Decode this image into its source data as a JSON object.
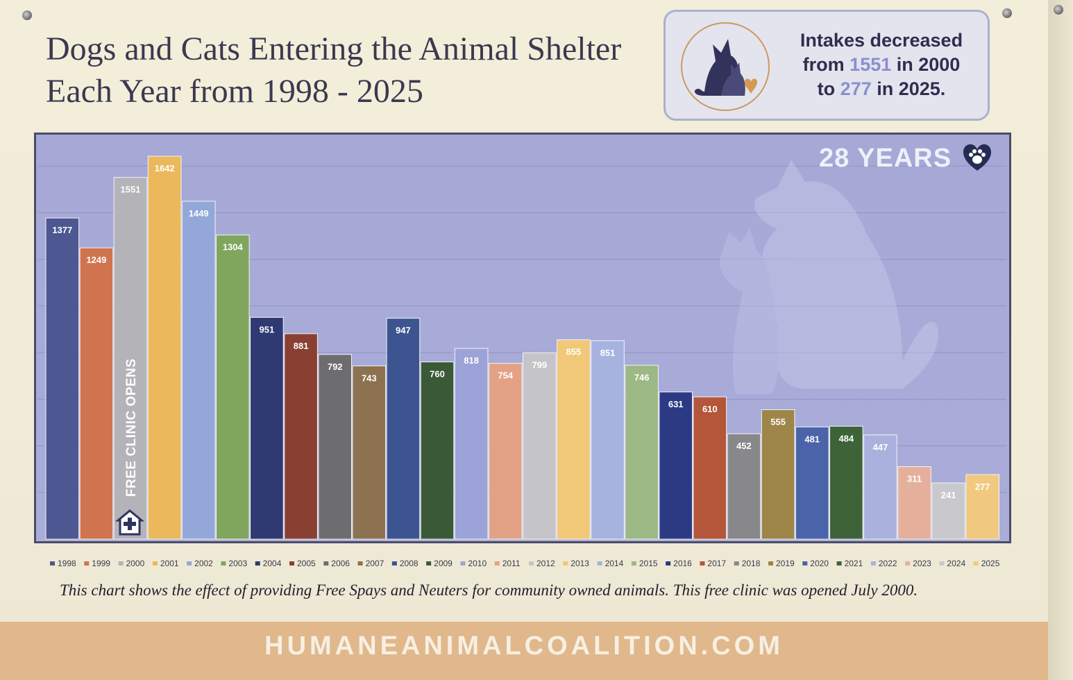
{
  "header": {
    "title_line1": "Dogs and Cats Entering the Animal Shelter",
    "title_line2": "Each Year from 1998 - 2025"
  },
  "callout": {
    "line1": "Intakes decreased",
    "line2_pre": "from ",
    "line2_num": "1551",
    "line2_post": " in 2000",
    "line3_pre": "to ",
    "line3_num": "277",
    "line3_post": " in 2025.",
    "icon": "dog-cat-heart-icon"
  },
  "badge": {
    "text": "28 YEARS",
    "icon": "paw-heart-icon"
  },
  "annotation": {
    "text": "FREE CLINIC OPENS",
    "icon": "clinic-house-icon"
  },
  "caption": "This chart shows the effect of providing Free Spays and Neuters for community owned animals.  This free clinic was opened July 2000.",
  "footer": {
    "text": "HUMANEANIMALCOALITION.COM"
  },
  "chart_data": {
    "type": "bar",
    "categories": [
      "1998",
      "1999",
      "2000",
      "2001",
      "2002",
      "2003",
      "2004",
      "2005",
      "2006",
      "2007",
      "2008",
      "2009",
      "2010",
      "2011",
      "2012",
      "2013",
      "2014",
      "2015",
      "2016",
      "2017",
      "2018",
      "2019",
      "2020",
      "2021",
      "2022",
      "2023",
      "2024",
      "2025"
    ],
    "values": [
      1377,
      1249,
      1551,
      1642,
      1449,
      1304,
      951,
      881,
      792,
      743,
      947,
      760,
      818,
      754,
      799,
      855,
      851,
      746,
      631,
      610,
      452,
      555,
      481,
      484,
      447,
      311,
      241,
      277
    ],
    "colors": [
      "#4d5791",
      "#d0744f",
      "#b3b3b8",
      "#ecb85c",
      "#93a8d8",
      "#7fa65c",
      "#2f3a72",
      "#8a3f33",
      "#6d6d70",
      "#8c7250",
      "#3c5590",
      "#3a5a37",
      "#9ba3d9",
      "#e3a286",
      "#c5c4c8",
      "#f1c878",
      "#a6b3df",
      "#9cb884",
      "#2c3a84",
      "#b3563a",
      "#88888a",
      "#9e8548",
      "#4a63a9",
      "#3e6338",
      "#aab1dd",
      "#e5b09b",
      "#c9c8cc",
      "#f0c97e"
    ],
    "ylim": [
      0,
      1800
    ],
    "grid": true,
    "legend_position": "bottom"
  }
}
